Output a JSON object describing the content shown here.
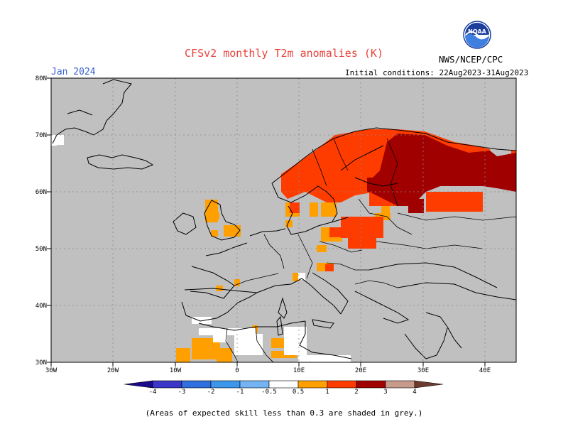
{
  "header": {
    "title": "CFSv2 monthly T2m anomalies (K)",
    "month": "Jan 2024",
    "initial_conditions": "Initial conditions: 22Aug2023-31Aug2023",
    "agency": "NWS/NCEP/CPC",
    "logo_text": "NOAA"
  },
  "map": {
    "lon_range": [
      -30,
      45
    ],
    "lat_range": [
      30,
      80
    ],
    "lat_labels": [
      "30N",
      "40N",
      "50N",
      "60N",
      "70N",
      "80N"
    ],
    "lon_labels": [
      "30W",
      "20W",
      "10W",
      "0",
      "10E",
      "20E",
      "30E",
      "40E"
    ],
    "background_color": "#c0c0c0",
    "grid": "dotted"
  },
  "legend": {
    "tick_labels": [
      "-4",
      "-3",
      "-2",
      "-1",
      "-0.5",
      "0.5",
      "1",
      "2",
      "3",
      "4"
    ],
    "bins": [
      {
        "range": "<-4",
        "color": "#1a0a8c"
      },
      {
        "range": "-4 to -3",
        "color": "#3a36c8"
      },
      {
        "range": "-3 to -2",
        "color": "#2f6fe0"
      },
      {
        "range": "-2 to -1",
        "color": "#3c96ea"
      },
      {
        "range": "-1 to -0.5",
        "color": "#74b4f5"
      },
      {
        "range": "-0.5 to 0.5",
        "color": "#ffffff"
      },
      {
        "range": "0.5 to 1",
        "color": "#ffa000"
      },
      {
        "range": "1 to 2",
        "color": "#ff3c00"
      },
      {
        "range": "2 to 3",
        "color": "#a00000"
      },
      {
        "range": "3 to 4",
        "color": "#c89a8c"
      },
      {
        "range": ">4",
        "color": "#6a3c2e"
      }
    ]
  },
  "footnote": "(Areas of expected skill less than 0.3 are shaded in grey.)"
}
